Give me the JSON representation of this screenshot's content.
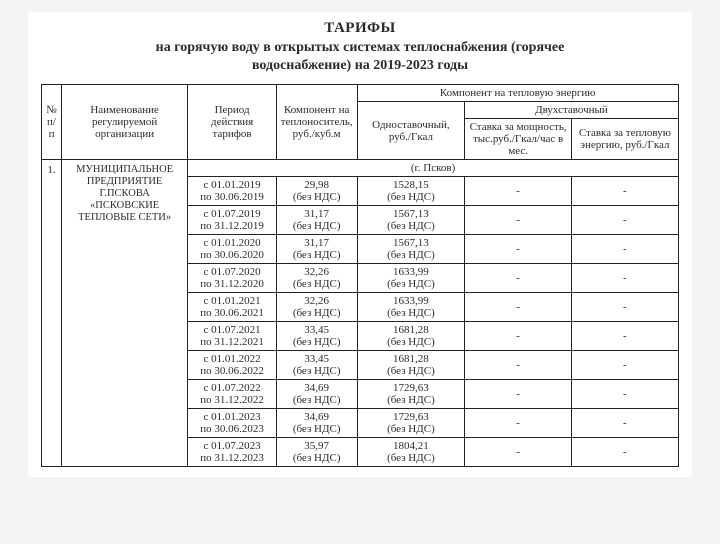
{
  "title": "ТАРИФЫ",
  "subtitle_line1": "на горячую воду в открытых системах теплоснабжения (горячее",
  "subtitle_line2": "водоснабжение) на 2019-2023 годы",
  "header": {
    "idx": "№ п/п",
    "org": "Наименование регулируемой организации",
    "period": "Период действия тарифов",
    "component": "Компонент на теплоноситель, руб./куб.м",
    "heat_group": "Компонент на тепловую энергию",
    "one_rate": "Одноставочный, руб./Гкал",
    "two_rate": "Двухставочный",
    "power_rate": "Ставка за мощность, тыс.руб./Гкал/час в мес.",
    "heat_rate": "Ставка за тепловую энергию, руб./Гкал"
  },
  "row_idx": "1.",
  "org_name_l1": "МУНИЦИПАЛЬНОЕ",
  "org_name_l2": "ПРЕДПРИЯТИЕ",
  "org_name_l3": "Г.ПСКОВА",
  "org_name_l4": "«ПСКОВСКИЕ",
  "org_name_l5": "ТЕПЛОВЫЕ СЕТИ»",
  "city": "(г. Псков)",
  "note": "(без НДС)",
  "dash": "-",
  "rows": [
    {
      "p1": "с 01.01.2019",
      "p2": "по 30.06.2019",
      "comp": "29,98",
      "one": "1528,15"
    },
    {
      "p1": "с 01.07.2019",
      "p2": "по 31.12.2019",
      "comp": "31,17",
      "one": "1567,13"
    },
    {
      "p1": "с 01.01.2020",
      "p2": "по 30.06.2020",
      "comp": "31,17",
      "one": "1567,13"
    },
    {
      "p1": "с 01.07.2020",
      "p2": "по 31.12.2020",
      "comp": "32,26",
      "one": "1633,99"
    },
    {
      "p1": "с 01.01.2021",
      "p2": "по 30.06.2021",
      "comp": "32,26",
      "one": "1633,99"
    },
    {
      "p1": "с 01.07.2021",
      "p2": "по 31.12.2021",
      "comp": "33,45",
      "one": "1681,28"
    },
    {
      "p1": "с 01.01.2022",
      "p2": "по 30.06.2022",
      "comp": "33,45",
      "one": "1681,28"
    },
    {
      "p1": "с 01.07.2022",
      "p2": "по 31.12.2022",
      "comp": "34,69",
      "one": "1729,63"
    },
    {
      "p1": "с 01.01.2023",
      "p2": "по 30.06.2023",
      "comp": "34,69",
      "one": "1729,63"
    },
    {
      "p1": "с 01.07.2023",
      "p2": "по 31.12.2023",
      "comp": "35,97",
      "one": "1804,21"
    }
  ]
}
